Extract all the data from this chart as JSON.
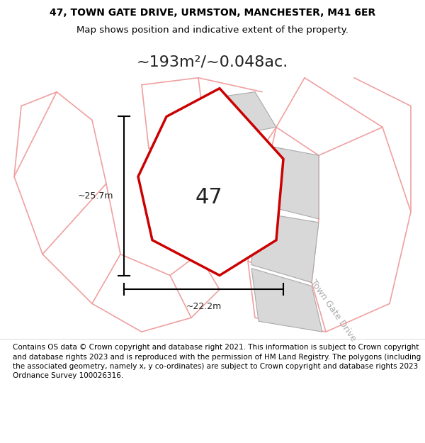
{
  "title_line1": "47, TOWN GATE DRIVE, URMSTON, MANCHESTER, M41 6ER",
  "title_line2": "Map shows position and indicative extent of the property.",
  "area_text": "~193m²/~0.048ac.",
  "label_47": "47",
  "dim_width": "~22.2m",
  "dim_height": "~25.7m",
  "road_label": "Town Gate Drive",
  "footer_text": "Contains OS data © Crown copyright and database right 2021. This information is subject to Crown copyright and database rights 2023 and is reproduced with the permission of HM Land Registry. The polygons (including the associated geometry, namely x, y co-ordinates) are subject to Crown copyright and database rights 2023 Ordnance Survey 100026316.",
  "bg_color": "#ffffff",
  "map_bg": "#ffffff",
  "highlight_color": "#cc0000",
  "neighbor_fill": "#d8d8d8",
  "neighbor_stroke": "#aaaaaa",
  "road_line_color": "#f0a0a0",
  "title_fontsize": 10,
  "footer_fontsize": 7.5
}
